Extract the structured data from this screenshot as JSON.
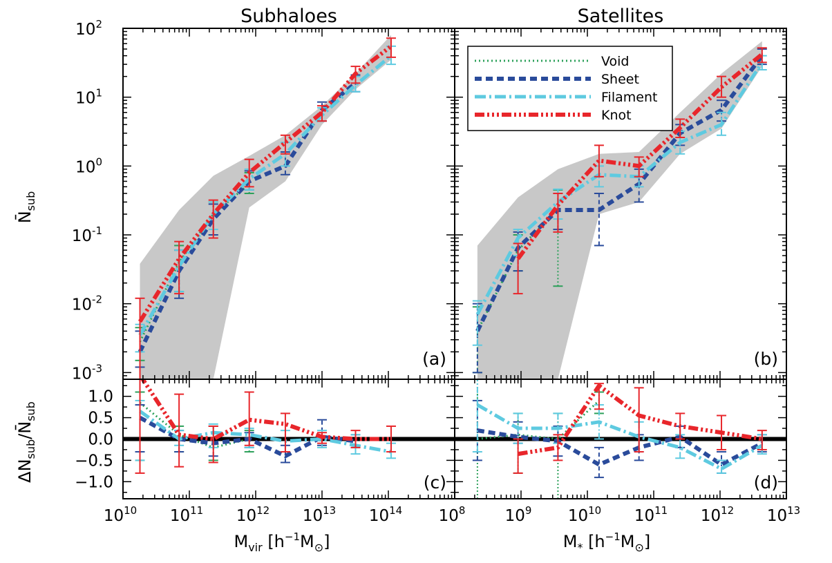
{
  "chart_data": [
    {
      "type": "line",
      "panel_label": "(a)",
      "title": "Subhaloes",
      "ylabel": "N̄",
      "ylabel_sub": "sub",
      "xscale": "log",
      "yscale": "log",
      "xlim": [
        10000000000.0,
        1000000000000000.0
      ],
      "ylim": [
        0.0008,
        100
      ],
      "yticks": [
        {
          "base": "10",
          "exp": "-3"
        },
        {
          "base": "10",
          "exp": "-2"
        },
        {
          "base": "10",
          "exp": "-1"
        },
        {
          "base": "10",
          "exp": "0"
        },
        {
          "base": "10",
          "exp": "1"
        },
        {
          "base": "10",
          "exp": "2"
        }
      ],
      "band": {
        "color": "#c8c8c8",
        "x": [
          18000000000.0,
          70000000000.0,
          230000000000.0,
          800000000000.0,
          2800000000000.0,
          10000000000000.0,
          32000000000000.0,
          110000000000000.0
        ],
        "upper": [
          0.038,
          0.23,
          0.72,
          1.4,
          2.8,
          7.5,
          22,
          80
        ],
        "lower": [
          0.0008,
          0.0008,
          0.0008,
          0.25,
          0.6,
          4,
          13,
          35
        ]
      },
      "series": [
        {
          "name": "Void",
          "color": "#2ca05a",
          "dash": "2,4",
          "width": 3,
          "x": [
            18000000000.0,
            70000000000.0,
            230000000000.0,
            800000000000.0
          ],
          "y": [
            0.0028,
            0.04,
            0.2,
            0.55
          ],
          "err_lo": [
            0.0015,
            0.015,
            0.1,
            0.4
          ],
          "err_hi": [
            0.0045,
            0.07,
            0.3,
            0.8
          ]
        },
        {
          "name": "Sheet",
          "color": "#2a4b9b",
          "dash": "10,6",
          "width": 6,
          "x": [
            18000000000.0,
            70000000000.0,
            230000000000.0,
            800000000000.0,
            2800000000000.0,
            10000000000000.0,
            32000000000000.0
          ],
          "y": [
            0.002,
            0.03,
            0.17,
            0.6,
            1.0,
            6.5,
            16
          ],
          "err_lo": [
            0.0012,
            0.012,
            0.1,
            0.45,
            0.75,
            4.5,
            12
          ],
          "err_hi": [
            0.004,
            0.06,
            0.28,
            0.85,
            1.6,
            8.5,
            21
          ]
        },
        {
          "name": "Filament",
          "color": "#5ecae0",
          "dash": "16,5,3,5",
          "width": 5,
          "x": [
            18000000000.0,
            70000000000.0,
            230000000000.0,
            800000000000.0,
            2800000000000.0,
            10000000000000.0,
            32000000000000.0,
            110000000000000.0
          ],
          "y": [
            0.0035,
            0.035,
            0.2,
            0.65,
            1.5,
            5.5,
            15,
            40
          ],
          "err_lo": [
            0.002,
            0.015,
            0.12,
            0.45,
            1.0,
            4.5,
            12,
            30
          ],
          "err_hi": [
            0.005,
            0.06,
            0.3,
            0.9,
            2.2,
            7,
            20,
            55
          ]
        },
        {
          "name": "Knot",
          "color": "#e8262b",
          "dash": "14,4,3,4,3,4,3,4",
          "width": 6,
          "x": [
            18000000000.0,
            70000000000.0,
            230000000000.0,
            800000000000.0,
            2800000000000.0,
            10000000000000.0,
            32000000000000.0,
            110000000000000.0
          ],
          "y": [
            0.0055,
            0.045,
            0.2,
            0.8,
            2.2,
            6,
            22,
            55
          ],
          "err_lo": [
            0.0008,
            0.014,
            0.09,
            0.5,
            1.5,
            4.5,
            16,
            38
          ],
          "err_hi": [
            0.012,
            0.08,
            0.32,
            1.25,
            2.8,
            7.5,
            28,
            72
          ]
        }
      ]
    },
    {
      "type": "line",
      "panel_label": "(b)",
      "title": "Satellites",
      "xscale": "log",
      "yscale": "log",
      "xlim": [
        100000000.0,
        10000000000000.0
      ],
      "ylim": [
        0.0008,
        100
      ],
      "legend_position": "top-left",
      "band": {
        "color": "#c8c8c8",
        "x": [
          220000000.0,
          900000000.0,
          3600000000.0,
          15000000000.0,
          60000000000.0,
          250000000000.0,
          1050000000000.0,
          4300000000000.0
        ],
        "upper": [
          0.07,
          0.35,
          0.9,
          1.5,
          1.6,
          6,
          22,
          65
        ],
        "lower": [
          0.0008,
          0.0008,
          0.0008,
          0.2,
          0.3,
          1.5,
          3.5,
          28
        ]
      },
      "series": [
        {
          "name": "Void",
          "color": "#2ca05a",
          "x": [
            220000000.0,
            900000000.0,
            3600000000.0
          ],
          "y": [
            0.004,
            0.06,
            0.24
          ],
          "err_lo": [
            0.001,
            0.03,
            0.018
          ],
          "err_hi": [
            0.009,
            0.1,
            0.45
          ]
        },
        {
          "name": "Sheet",
          "color": "#2a4b9b",
          "x": [
            220000000.0,
            900000000.0,
            3600000000.0,
            15000000000.0,
            60000000000.0,
            250000000000.0,
            1050000000000.0,
            4300000000000.0
          ],
          "y": [
            0.004,
            0.065,
            0.23,
            0.23,
            0.55,
            3,
            6.5,
            40
          ],
          "err_lo": [
            0.001,
            0.03,
            0.12,
            0.07,
            0.3,
            2,
            4.5,
            30
          ],
          "err_hi": [
            0.01,
            0.11,
            0.4,
            0.4,
            0.9,
            4,
            9,
            50
          ]
        },
        {
          "name": "Filament",
          "color": "#5ecae0",
          "x": [
            220000000.0,
            900000000.0,
            3600000000.0,
            15000000000.0,
            60000000000.0,
            250000000000.0,
            1050000000000.0,
            4300000000000.0
          ],
          "y": [
            0.007,
            0.09,
            0.3,
            0.75,
            0.7,
            2.2,
            4,
            32
          ],
          "err_lo": [
            0.0025,
            0.05,
            0.17,
            0.5,
            0.5,
            1.5,
            2.8,
            25
          ],
          "err_hi": [
            0.011,
            0.12,
            0.46,
            1.0,
            1.0,
            3.2,
            6,
            40
          ]
        },
        {
          "name": "Knot",
          "color": "#e8262b",
          "x": [
            900000000.0,
            3600000000.0,
            15000000000.0,
            60000000000.0,
            250000000000.0,
            1050000000000.0,
            4300000000000.0
          ],
          "y": [
            0.045,
            0.27,
            1.2,
            1.0,
            3.6,
            14,
            42
          ],
          "err_lo": [
            0.014,
            0.11,
            0.7,
            0.7,
            2.6,
            10,
            32
          ],
          "err_hi": [
            0.075,
            0.4,
            2.0,
            1.35,
            4.8,
            20,
            52
          ]
        }
      ]
    },
    {
      "type": "line",
      "panel_label": "(c)",
      "xlabel": "M",
      "xlabel_sub": "vir",
      "xlabel_units": "[h",
      "xlabel_units_sup": "−1",
      "xlabel_units_end": "M",
      "xlabel_units_end_sub": "⊙",
      "xlabel_close": "]",
      "ylabel": "ΔN",
      "ylabel_sub": "sub",
      "ylabel_slash": "/N̄",
      "ylabel_sub2": "sub",
      "xscale": "log",
      "xlim": [
        10000000000.0,
        1000000000000000.0
      ],
      "ylim": [
        -1.4,
        1.4
      ],
      "yticks": [
        "−1.0",
        "−0.5",
        "0.0",
        "0.5",
        "1.0"
      ],
      "xticks": [
        {
          "base": "10",
          "exp": "10"
        },
        {
          "base": "10",
          "exp": "11"
        },
        {
          "base": "10",
          "exp": "12"
        },
        {
          "base": "10",
          "exp": "13"
        },
        {
          "base": "10",
          "exp": "14"
        }
      ],
      "series": [
        {
          "name": "Void",
          "color": "#2ca05a",
          "x": [
            18000000000.0,
            70000000000.0,
            230000000000.0,
            800000000000.0
          ],
          "y": [
            0.85,
            0.1,
            -0.2,
            0.0
          ],
          "err_lo": [
            -0.5,
            -0.3,
            -0.5,
            -0.3
          ],
          "err_hi": [
            1.1,
            0.3,
            0.3,
            0.2
          ]
        },
        {
          "name": "Sheet",
          "color": "#2a4b9b",
          "x": [
            18000000000.0,
            70000000000.0,
            230000000000.0,
            800000000000.0,
            2800000000000.0,
            10000000000000.0,
            32000000000000.0
          ],
          "y": [
            0.5,
            0.0,
            -0.1,
            0.0,
            -0.4,
            0.05,
            -0.05
          ],
          "err_lo": [
            -0.3,
            -0.3,
            -0.4,
            -0.2,
            -0.55,
            -0.15,
            -0.2
          ],
          "err_hi": [
            0.8,
            0.2,
            0.3,
            0.15,
            -0.15,
            0.45,
            0.1
          ]
        },
        {
          "name": "Filament",
          "color": "#5ecae0",
          "x": [
            18000000000.0,
            70000000000.0,
            230000000000.0,
            800000000000.0,
            2800000000000.0,
            10000000000000.0,
            32000000000000.0,
            110000000000000.0
          ],
          "y": [
            0.65,
            0.0,
            0.15,
            0.1,
            -0.05,
            0.0,
            -0.15,
            -0.3
          ],
          "err_lo": [
            -0.5,
            -0.15,
            -0.2,
            -0.2,
            -0.3,
            -0.2,
            -0.35,
            -0.45
          ],
          "err_hi": [
            0.9,
            0.2,
            0.35,
            0.25,
            0.2,
            0.2,
            0.1,
            -0.1
          ]
        },
        {
          "name": "Knot",
          "color": "#e8262b",
          "x": [
            18000000000.0,
            70000000000.0,
            230000000000.0,
            800000000000.0,
            2800000000000.0,
            10000000000000.0,
            32000000000000.0,
            110000000000000.0
          ],
          "y": [
            1.5,
            0.1,
            0.0,
            0.45,
            0.35,
            0.05,
            0.0,
            0.0
          ],
          "err_lo": [
            -0.8,
            -0.65,
            -0.55,
            -0.15,
            -0.3,
            -0.1,
            -0.2,
            -0.3
          ],
          "err_hi": [
            1.5,
            1.05,
            0.3,
            1.1,
            0.6,
            0.15,
            0.2,
            0.3
          ]
        }
      ]
    },
    {
      "type": "line",
      "panel_label": "(d)",
      "xlabel": "M",
      "xlabel_sub": "*",
      "xlabel_units": "[h",
      "xlabel_units_sup": "−1",
      "xlabel_units_end": "M",
      "xlabel_units_end_sub": "⊙",
      "xlabel_close": "]",
      "xscale": "log",
      "xlim": [
        100000000.0,
        10000000000000.0
      ],
      "ylim": [
        -1.4,
        1.4
      ],
      "xticks": [
        {
          "base": "10",
          "exp": "8"
        },
        {
          "base": "10",
          "exp": "9"
        },
        {
          "base": "10",
          "exp": "10"
        },
        {
          "base": "10",
          "exp": "11"
        },
        {
          "base": "10",
          "exp": "12"
        },
        {
          "base": "10",
          "exp": "13"
        }
      ],
      "series": [
        {
          "name": "Void",
          "color": "#2ca05a",
          "x": [
            220000000.0,
            900000000.0,
            3600000000.0,
            15000000000.0
          ],
          "y": [
            0.0,
            0.1,
            0.0,
            0.9
          ],
          "err_lo": [
            -1.4,
            -0.8,
            -1.4,
            0.6
          ],
          "err_hi": [
            1.4,
            0.6,
            0.6,
            1.1
          ]
        },
        {
          "name": "Sheet",
          "color": "#2a4b9b",
          "x": [
            220000000.0,
            900000000.0,
            3600000000.0,
            15000000000.0,
            60000000000.0,
            250000000000.0,
            1050000000000.0,
            4300000000000.0
          ],
          "y": [
            0.2,
            0.05,
            -0.05,
            -0.6,
            -0.2,
            0.05,
            -0.6,
            -0.1
          ],
          "err_lo": [
            -0.5,
            -0.1,
            -0.4,
            -0.9,
            -0.5,
            -0.2,
            -0.8,
            -0.3
          ],
          "err_hi": [
            0.9,
            0.4,
            0.3,
            -0.2,
            0.1,
            0.3,
            -0.3,
            0.1
          ]
        },
        {
          "name": "Filament",
          "color": "#5ecae0",
          "x": [
            220000000.0,
            900000000.0,
            3600000000.0,
            15000000000.0,
            60000000000.0,
            250000000000.0,
            1050000000000.0,
            4300000000000.0
          ],
          "y": [
            0.8,
            0.25,
            0.25,
            0.4,
            0.05,
            -0.2,
            -0.7,
            -0.15
          ],
          "err_lo": [
            -0.3,
            -0.1,
            -0.1,
            0.0,
            -0.3,
            -0.45,
            -0.8,
            -0.35
          ],
          "err_hi": [
            1.4,
            0.6,
            0.6,
            0.8,
            0.4,
            0.1,
            -0.5,
            0.1
          ]
        },
        {
          "name": "Knot",
          "color": "#e8262b",
          "x": [
            900000000.0,
            3600000000.0,
            15000000000.0,
            60000000000.0,
            250000000000.0,
            1050000000000.0,
            4300000000000.0
          ],
          "y": [
            -0.35,
            -0.2,
            1.25,
            0.55,
            0.3,
            0.15,
            0.0
          ],
          "err_lo": [
            -0.8,
            -0.5,
            0.7,
            -0.3,
            0.0,
            -0.25,
            -0.25
          ],
          "err_hi": [
            0.0,
            0.1,
            1.3,
            1.2,
            0.6,
            0.55,
            0.2
          ]
        }
      ]
    }
  ]
}
